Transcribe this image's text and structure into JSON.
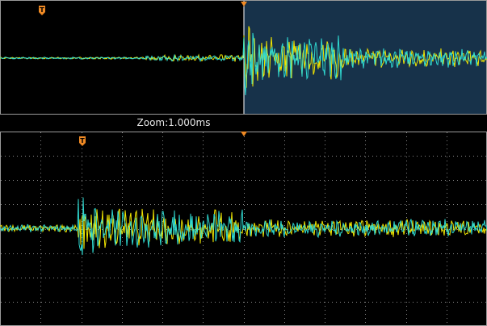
{
  "zoom": {
    "label": "Zoom:1.000ms"
  },
  "markers": {
    "trigger_glyph": "T",
    "trigger_icon": "trigger-marker-icon",
    "position_icon": "trigger-position-triangle-icon"
  },
  "colors": {
    "background": "#000000",
    "grid": "#8a8a8a",
    "border": "#9a9a9a",
    "zoom_window": "#17324a",
    "channel1": "#f2e600",
    "channel2": "#2fd8d0",
    "trigger_marker": "#f08a24"
  },
  "waveform": {
    "channels": [
      "yellow",
      "cyan"
    ],
    "segments": [
      {
        "from": 0.0,
        "to": 0.3,
        "amp": 0.02
      },
      {
        "from": 0.3,
        "to": 0.45,
        "amp": 0.06
      },
      {
        "from": 0.45,
        "to": 0.5,
        "amp": 0.08
      },
      {
        "from": 0.5,
        "to": 0.52,
        "amp": 0.75
      },
      {
        "from": 0.52,
        "to": 0.7,
        "amp": 0.45
      },
      {
        "from": 0.7,
        "to": 1.0,
        "amp": 0.2
      }
    ]
  }
}
